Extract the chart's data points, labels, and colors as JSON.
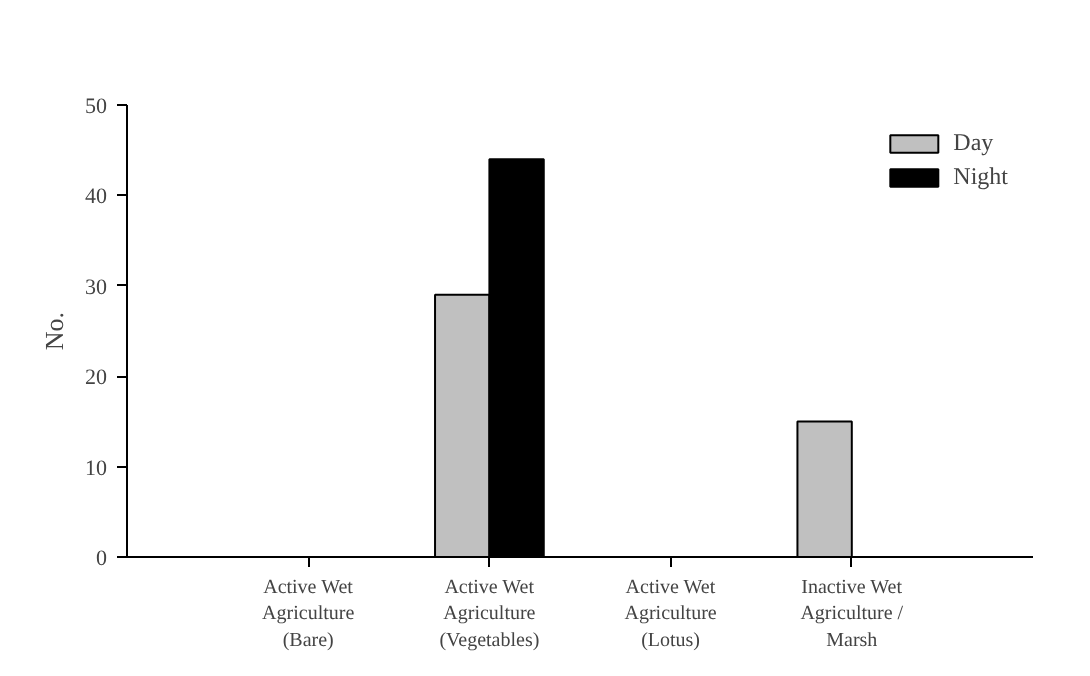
{
  "chart_data": {
    "type": "bar",
    "ylabel": "No.",
    "categories": [
      "Active Wet\nAgriculture\n(Bare)",
      "Active Wet\nAgriculture\n(Vegetables)",
      "Active Wet\nAgriculture\n(Lotus)",
      "Inactive Wet\nAgriculture /\nMarsh"
    ],
    "series": [
      {
        "name": "Day",
        "color": "#c0c0c0",
        "values": [
          null,
          29,
          null,
          15
        ]
      },
      {
        "name": "Night",
        "color": "#000000",
        "values": [
          null,
          44,
          null,
          null
        ]
      }
    ],
    "ylim": [
      0,
      50
    ],
    "yticks": [
      0,
      10,
      20,
      30,
      40,
      50
    ],
    "grid": false,
    "legend": "top right"
  }
}
